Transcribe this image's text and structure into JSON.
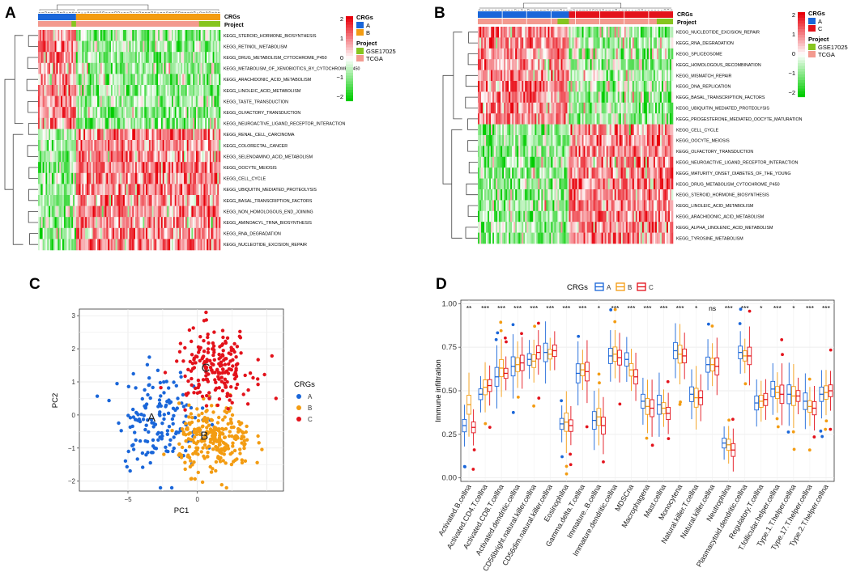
{
  "panels": {
    "a": "A",
    "b": "B",
    "c": "C",
    "d": "D"
  },
  "colors": {
    "heat_low": "#00CC00",
    "heat_mid": "#FFFFFF",
    "heat_high": "#E8000B",
    "group_A": "#1A66D9",
    "group_B": "#F39C12",
    "group_C": "#E3121B",
    "project_GSE": "#86C51F",
    "project_TCGA": "#F39A8F"
  },
  "chart_data": [
    {
      "type": "heatmap",
      "panel": "A",
      "annotation_labels": [
        "CRGs",
        "Project"
      ],
      "legend_crgs_title": "CRGs",
      "legend_crgs": [
        "A",
        "B"
      ],
      "legend_project_title": "Project",
      "legend_project": [
        "GSE17025",
        "TCGA"
      ],
      "color_scale_ticks": [
        "2",
        "1",
        "0",
        "−1",
        "−2"
      ],
      "rows": [
        "KEGG_STEROID_HORMONE_BIOSYNTHESIS",
        "KEGG_RETINOL_METABOLISM",
        "KEGG_DRUG_METABOLISM_CYTOCHROME_P450",
        "KEGG_METABOLISM_OF_XENOBIOTICS_BY_CYTOCHROME_P450",
        "KEGG_ARACHIDONIC_ACID_METABOLISM",
        "KEGG_LINOLEIC_ACID_METABOLISM",
        "KEGG_TASTE_TRANSDUCTION",
        "KEGG_OLFACTORY_TRANSDUCTION",
        "KEGG_NEUROACTIVE_LIGAND_RECEPTOR_INTERACTION",
        "KEGG_RENAL_CELL_CARCINOMA",
        "KEGG_COLORECTAL_CANCER",
        "KEGG_SELENOAMINO_ACID_METABOLISM",
        "KEGG_OOCYTE_MEIOSIS",
        "KEGG_CELL_CYCLE",
        "KEGG_UBIQUITIN_MEDIATED_PROTEOLYSIS",
        "KEGG_BASAL_TRANSCRIPTION_FACTORS",
        "KEGG_NON_HOMOLOGOUS_END_JOINING",
        "KEGG_AMINOACYL_TRNA_BIOSYNTHESIS",
        "KEGG_RNA_DEGRADATION",
        "KEGG_NUCLEOTIDE_EXCISION_REPAIR"
      ],
      "group_fraction_A": 0.21,
      "high_in_A_rows": 9
    },
    {
      "type": "heatmap",
      "panel": "B",
      "annotation_labels": [
        "CRGs",
        "Project"
      ],
      "legend_crgs_title": "CRGs",
      "legend_crgs": [
        "A",
        "C"
      ],
      "legend_project_title": "Project",
      "legend_project": [
        "GSE17025",
        "TCGA"
      ],
      "color_scale_ticks": [
        "2",
        "1",
        "0",
        "−1",
        "−2"
      ],
      "rows": [
        "KEGG_NUCLEOTIDE_EXCISION_REPAIR",
        "KEGG_RNA_DEGRADATION",
        "KEGG_SPLICEOSOME",
        "KEGG_HOMOLOGOUS_RECOMBINATION",
        "KEGG_MISMATCH_REPAIR",
        "KEGG_DNA_REPLICATION",
        "KEGG_BASAL_TRANSCRIPTION_FACTORS",
        "KEGG_UBIQUITIN_MEDIATED_PROTEOLYSIS",
        "KEGG_PROGESTERONE_MEDIATED_OOCYTE_MATURATION",
        "KEGG_CELL_CYCLE",
        "KEGG_OOCYTE_MEIOSIS",
        "KEGG_OLFACTORY_TRANSDUCTION",
        "KEGG_NEUROACTIVE_LIGAND_RECEPTOR_INTERACTION",
        "KEGG_MATURITY_ONSET_DIABETES_OF_THE_YOUNG",
        "KEGG_DRUG_METABOLISM_CYTOCHROME_P450",
        "KEGG_STEROID_HORMONE_BIOSYNTHESIS",
        "KEGG_LINOLEIC_ACID_METABOLISM",
        "KEGG_ARACHIDONIC_ACID_METABOLISM",
        "KEGG_ALPHA_LINOLENIC_ACID_METABOLISM",
        "KEGG_TYROSINE_METABOLISM"
      ],
      "group_fraction_A": 0.47,
      "high_in_A_rows": 9
    },
    {
      "type": "scatter",
      "panel": "C",
      "xlabel": "PC1",
      "ylabel": "PC2",
      "xlim": [
        -8.5,
        6.2
      ],
      "ylim": [
        -2.3,
        3.2
      ],
      "xticks": [
        -5,
        0
      ],
      "yticks": [
        3,
        2,
        1,
        0,
        -1,
        -2
      ],
      "legend_title": "CRGs",
      "legend": [
        "A",
        "B",
        "C"
      ],
      "cluster_labels": [
        {
          "label": "A",
          "x": -3.3,
          "y": -0.2
        },
        {
          "label": "B",
          "x": 0.5,
          "y": -0.75
        },
        {
          "label": "C",
          "x": 0.6,
          "y": 1.3
        }
      ],
      "clusters": [
        {
          "name": "A",
          "center": [
            -2.8,
            -0.1
          ],
          "spread": [
            1.5,
            0.75
          ],
          "n": 160
        },
        {
          "name": "B",
          "center": [
            1.3,
            -0.75
          ],
          "spread": [
            1.3,
            0.5
          ],
          "n": 260
        },
        {
          "name": "C",
          "center": [
            1.2,
            1.45
          ],
          "spread": [
            1.4,
            0.55
          ],
          "n": 200
        }
      ]
    },
    {
      "type": "boxplot",
      "panel": "D",
      "legend_title": "CRGs",
      "legend": [
        "A",
        "B",
        "C"
      ],
      "ylabel": "Immune infiltration",
      "ylim": [
        -0.02,
        1.02
      ],
      "yticks": [
        "0.00",
        "0.25",
        "0.50",
        "0.75",
        "1.00"
      ],
      "categories": [
        "Activated.B.cellna",
        "Activated.CD4.T.cellna",
        "Activated.CD8.T.cellna",
        "Activated.dendritic.cellna",
        "CD56bright.natural.killer.cellna",
        "CD56dim.natural.killer.cellna",
        "Eosinophilna",
        "Gamma.delta.T.cellna",
        "Immature..B.cellna",
        "Immature.dendritic.cellna",
        "MDSCna",
        "Macrophagena",
        "Mast.cellna",
        "Monocytena",
        "Natural.killer.T.cellna",
        "Natural.killer.cellna",
        "Neutrophilna",
        "Plasmacytoid.dendritic.cellna",
        "Regulatory.T.cellna",
        "T.follicular.helper.cellna",
        "Type.1.T.helper.cellna",
        "Type.17.T.helper.cellna",
        "Type.2.T.helper.cellna"
      ],
      "significance": [
        "**",
        "***",
        "***",
        "***",
        "***",
        "***",
        "***",
        "***",
        "*",
        "***",
        "***",
        "***",
        "***",
        "***",
        "*",
        "ns",
        "***",
        "***",
        "*",
        "***",
        "*",
        "***",
        "***"
      ],
      "medians": {
        "A": [
          0.3,
          0.48,
          0.58,
          0.64,
          0.68,
          0.72,
          0.31,
          0.6,
          0.33,
          0.7,
          0.68,
          0.44,
          0.42,
          0.73,
          0.48,
          0.65,
          0.2,
          0.72,
          0.43,
          0.51,
          0.48,
          0.44,
          0.48
        ],
        "B": [
          0.42,
          0.52,
          0.63,
          0.65,
          0.67,
          0.71,
          0.32,
          0.62,
          0.35,
          0.71,
          0.62,
          0.41,
          0.4,
          0.71,
          0.46,
          0.65,
          0.19,
          0.7,
          0.44,
          0.49,
          0.47,
          0.41,
          0.49
        ],
        "C": [
          0.29,
          0.53,
          0.6,
          0.66,
          0.72,
          0.73,
          0.3,
          0.61,
          0.3,
          0.69,
          0.58,
          0.4,
          0.37,
          0.7,
          0.46,
          0.64,
          0.16,
          0.7,
          0.45,
          0.48,
          0.47,
          0.4,
          0.5
        ]
      }
    }
  ]
}
